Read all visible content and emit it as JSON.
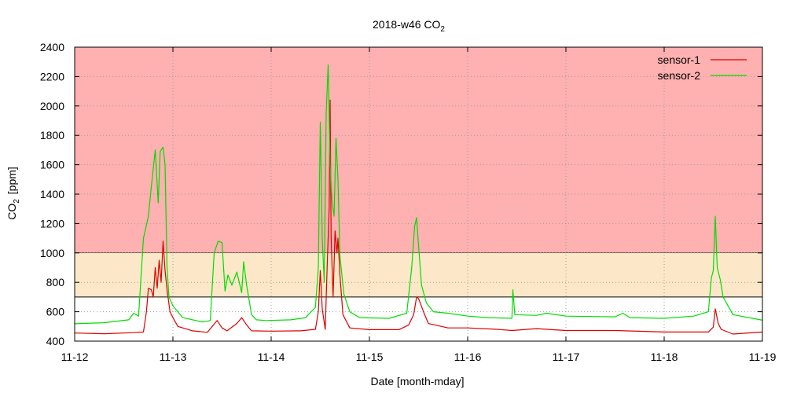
{
  "chart_data": {
    "type": "line",
    "title": "2018-w46 CO",
    "title_sub": "2",
    "xlabel": "Date [month-mday]",
    "ylabel_pre": "CO",
    "ylabel_sub": "2",
    "ylabel_post": "[ppm]",
    "xlim": [
      "11-12",
      "11-19"
    ],
    "ylim": [
      400,
      2400
    ],
    "x_ticks": [
      "11-12",
      "11-13",
      "11-14",
      "11-15",
      "11-16",
      "11-17",
      "11-18",
      "11-19"
    ],
    "y_ticks": [
      400,
      600,
      800,
      1000,
      1200,
      1400,
      1600,
      1800,
      2000,
      2200,
      2400
    ],
    "grid": true,
    "legend_position": "top-right",
    "bands": [
      {
        "from": 1000,
        "to": 2400,
        "color": "#ffb0b0"
      },
      {
        "from": 700,
        "to": 1000,
        "color": "#fce8c8"
      }
    ],
    "series": [
      {
        "name": "sensor-1",
        "color": "#dd0000",
        "points": [
          [
            0,
            455
          ],
          [
            0.3,
            450
          ],
          [
            0.6,
            458
          ],
          [
            0.7,
            462
          ],
          [
            0.73,
            600
          ],
          [
            0.75,
            760
          ],
          [
            0.78,
            750
          ],
          [
            0.8,
            700
          ],
          [
            0.82,
            900
          ],
          [
            0.84,
            760
          ],
          [
            0.86,
            950
          ],
          [
            0.88,
            800
          ],
          [
            0.9,
            1080
          ],
          [
            0.92,
            880
          ],
          [
            0.94,
            750
          ],
          [
            0.97,
            600
          ],
          [
            1.0,
            560
          ],
          [
            1.05,
            500
          ],
          [
            1.2,
            470
          ],
          [
            1.35,
            460
          ],
          [
            1.45,
            540
          ],
          [
            1.5,
            490
          ],
          [
            1.55,
            470
          ],
          [
            1.65,
            520
          ],
          [
            1.7,
            560
          ],
          [
            1.75,
            510
          ],
          [
            1.8,
            470
          ],
          [
            2.0,
            468
          ],
          [
            2.3,
            470
          ],
          [
            2.45,
            480
          ],
          [
            2.48,
            600
          ],
          [
            2.5,
            880
          ],
          [
            2.52,
            620
          ],
          [
            2.55,
            480
          ],
          [
            2.57,
            900
          ],
          [
            2.59,
            1300
          ],
          [
            2.6,
            2040
          ],
          [
            2.61,
            1100
          ],
          [
            2.63,
            700
          ],
          [
            2.65,
            1150
          ],
          [
            2.67,
            1000
          ],
          [
            2.68,
            1100
          ],
          [
            2.7,
            850
          ],
          [
            2.73,
            580
          ],
          [
            2.8,
            490
          ],
          [
            3.0,
            478
          ],
          [
            3.3,
            478
          ],
          [
            3.4,
            510
          ],
          [
            3.45,
            580
          ],
          [
            3.48,
            700
          ],
          [
            3.5,
            690
          ],
          [
            3.55,
            600
          ],
          [
            3.6,
            520
          ],
          [
            3.8,
            490
          ],
          [
            4.0,
            490
          ],
          [
            4.3,
            480
          ],
          [
            4.45,
            472
          ],
          [
            4.7,
            485
          ],
          [
            5.0,
            472
          ],
          [
            5.5,
            472
          ],
          [
            5.6,
            470
          ],
          [
            6.0,
            462
          ],
          [
            6.45,
            462
          ],
          [
            6.5,
            495
          ],
          [
            6.52,
            620
          ],
          [
            6.55,
            520
          ],
          [
            6.58,
            480
          ],
          [
            6.7,
            448
          ],
          [
            7.0,
            462
          ]
        ]
      },
      {
        "name": "sensor-2",
        "color": "#00dd00",
        "points": [
          [
            0,
            518
          ],
          [
            0.3,
            525
          ],
          [
            0.55,
            545
          ],
          [
            0.6,
            590
          ],
          [
            0.65,
            570
          ],
          [
            0.7,
            1100
          ],
          [
            0.75,
            1250
          ],
          [
            0.78,
            1450
          ],
          [
            0.82,
            1700
          ],
          [
            0.85,
            1340
          ],
          [
            0.87,
            1690
          ],
          [
            0.9,
            1720
          ],
          [
            0.92,
            1600
          ],
          [
            0.94,
            900
          ],
          [
            0.96,
            700
          ],
          [
            1.0,
            640
          ],
          [
            1.1,
            560
          ],
          [
            1.3,
            530
          ],
          [
            1.38,
            540
          ],
          [
            1.42,
            1000
          ],
          [
            1.46,
            1080
          ],
          [
            1.5,
            1070
          ],
          [
            1.53,
            740
          ],
          [
            1.56,
            850
          ],
          [
            1.6,
            780
          ],
          [
            1.65,
            870
          ],
          [
            1.7,
            730
          ],
          [
            1.72,
            940
          ],
          [
            1.75,
            780
          ],
          [
            1.8,
            580
          ],
          [
            1.85,
            545
          ],
          [
            1.95,
            540
          ],
          [
            2.2,
            545
          ],
          [
            2.35,
            560
          ],
          [
            2.45,
            630
          ],
          [
            2.48,
            900
          ],
          [
            2.5,
            1890
          ],
          [
            2.52,
            1100
          ],
          [
            2.54,
            800
          ],
          [
            2.56,
            1950
          ],
          [
            2.58,
            2280
          ],
          [
            2.6,
            1600
          ],
          [
            2.62,
            1350
          ],
          [
            2.64,
            1250
          ],
          [
            2.66,
            1780
          ],
          [
            2.68,
            1500
          ],
          [
            2.7,
            980
          ],
          [
            2.74,
            720
          ],
          [
            2.8,
            600
          ],
          [
            2.9,
            560
          ],
          [
            3.2,
            555
          ],
          [
            3.38,
            590
          ],
          [
            3.43,
            900
          ],
          [
            3.46,
            1180
          ],
          [
            3.48,
            1240
          ],
          [
            3.5,
            1050
          ],
          [
            3.53,
            780
          ],
          [
            3.58,
            660
          ],
          [
            3.65,
            600
          ],
          [
            3.8,
            590
          ],
          [
            4.0,
            570
          ],
          [
            4.2,
            560
          ],
          [
            4.45,
            555
          ],
          [
            4.46,
            750
          ],
          [
            4.48,
            580
          ],
          [
            4.7,
            575
          ],
          [
            4.8,
            590
          ],
          [
            5.0,
            570
          ],
          [
            5.5,
            565
          ],
          [
            5.58,
            590
          ],
          [
            5.65,
            560
          ],
          [
            6.0,
            555
          ],
          [
            6.3,
            570
          ],
          [
            6.45,
            600
          ],
          [
            6.48,
            830
          ],
          [
            6.5,
            880
          ],
          [
            6.52,
            1250
          ],
          [
            6.54,
            900
          ],
          [
            6.57,
            820
          ],
          [
            6.6,
            700
          ],
          [
            6.7,
            580
          ],
          [
            7.0,
            542
          ]
        ]
      }
    ]
  }
}
